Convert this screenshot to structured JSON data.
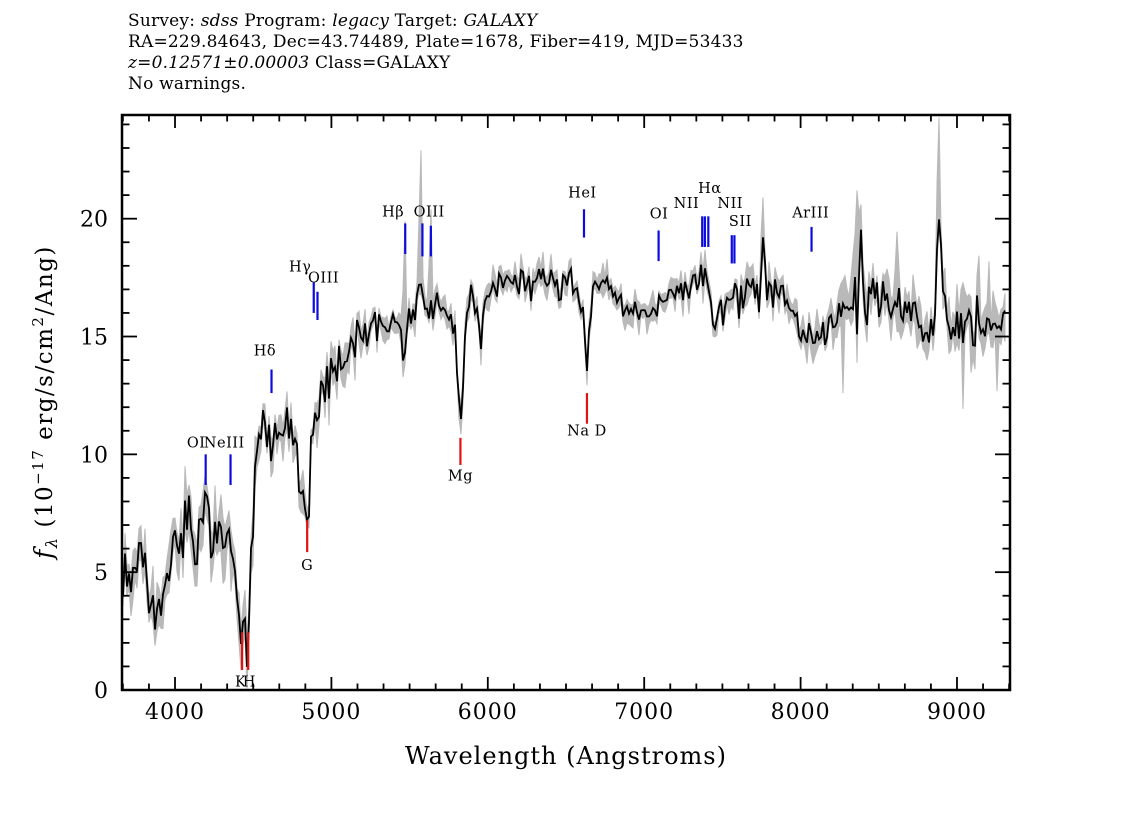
{
  "header": {
    "lines": [
      {
        "name": "survey-line",
        "segments": [
          {
            "text": "Survey: "
          },
          {
            "text": "sdss",
            "italic": true
          },
          {
            "text": " Program: "
          },
          {
            "text": "legacy",
            "italic": true
          },
          {
            "text": " Target: "
          },
          {
            "text": "GALAXY",
            "italic": true
          }
        ]
      },
      {
        "name": "coords-line",
        "segments": [
          {
            "text": "RA=229.84643, Dec=43.74489, Plate=1678, Fiber=419, MJD=53433"
          }
        ]
      },
      {
        "name": "redshift-line",
        "segments": [
          {
            "text": "z=0.12571±0.00003",
            "italic": true
          },
          {
            "text": " Class=GALAXY"
          }
        ]
      },
      {
        "name": "warnings-line",
        "segments": [
          {
            "text": "No warnings."
          }
        ]
      }
    ]
  },
  "chart_data": {
    "type": "line",
    "title": "SDSS galaxy spectrum, Plate=1678 Fiber=419 MJD=53433, z=0.12571",
    "xlabel": "Wavelength (Angstroms)",
    "ylabel_plain": "fλ (10⁻¹⁷ erg/s/cm²/Ang)",
    "ylabel_segments": [
      {
        "text": "f",
        "italic": true,
        "size": 25,
        "dy": 0
      },
      {
        "text": "λ",
        "italic": true,
        "size": 16,
        "dy": 5
      },
      {
        "text": " (10",
        "size": 23,
        "dy": -5
      },
      {
        "text": "−17",
        "size": 15,
        "dy": -9
      },
      {
        "text": " erg/s/cm",
        "size": 23,
        "dy": 9
      },
      {
        "text": "2",
        "size": 15,
        "dy": -9
      },
      {
        "text": "/Ang)",
        "size": 23,
        "dy": 9
      }
    ],
    "xlim": [
      3661,
      9339
    ],
    "ylim": [
      0,
      24.4
    ],
    "x_major_ticks": [
      4000,
      5000,
      6000,
      7000,
      8000,
      9000
    ],
    "x_minor_divisions": 6,
    "y_major_ticks": [
      0,
      5,
      10,
      15,
      20
    ],
    "y_minor_step": 1,
    "grid": false,
    "legend": "none",
    "colors": {
      "flux": "#000000",
      "error_envelope": "#b9b9b9",
      "emission": "#0b0bdf",
      "absorption": "#e31212",
      "frame": "#000000"
    },
    "series": [
      {
        "name": "flux",
        "role": "spectrum",
        "color": "#000000",
        "anchors": [
          [
            3661,
            4.8
          ],
          [
            3690,
            5.3
          ],
          [
            3715,
            4.3
          ],
          [
            3740,
            5.2
          ],
          [
            3762,
            4.4
          ],
          [
            3785,
            5.5
          ],
          [
            3810,
            4.9
          ],
          [
            3835,
            4.2
          ],
          [
            3858,
            3.4
          ],
          [
            3880,
            2.9
          ],
          [
            3900,
            4.6
          ],
          [
            3922,
            3.4
          ],
          [
            3945,
            4.0
          ],
          [
            3968,
            5.3
          ],
          [
            3990,
            5.7
          ],
          [
            4015,
            6.0
          ],
          [
            4040,
            6.8
          ],
          [
            4065,
            7.3
          ],
          [
            4090,
            7.2
          ],
          [
            4115,
            6.3
          ],
          [
            4140,
            5.9
          ],
          [
            4165,
            6.6
          ],
          [
            4190,
            7.1
          ],
          [
            4215,
            6.9
          ],
          [
            4240,
            6.0
          ],
          [
            4265,
            6.5
          ],
          [
            4290,
            6.9
          ],
          [
            4315,
            6.3
          ],
          [
            4340,
            6.5
          ],
          [
            4365,
            6.2
          ],
          [
            4395,
            4.8
          ],
          [
            4420,
            2.2
          ],
          [
            4438,
            3.0
          ],
          [
            4458,
            1.9
          ],
          [
            4478,
            3.2
          ],
          [
            4498,
            7.0
          ],
          [
            4515,
            9.4
          ],
          [
            4540,
            10.3
          ],
          [
            4565,
            10.9
          ],
          [
            4590,
            10.8
          ],
          [
            4615,
            10.2
          ],
          [
            4640,
            10.6
          ],
          [
            4665,
            11.0
          ],
          [
            4690,
            10.8
          ],
          [
            4715,
            11.2
          ],
          [
            4740,
            11.0
          ],
          [
            4765,
            10.4
          ],
          [
            4790,
            9.6
          ],
          [
            4815,
            8.6
          ],
          [
            4838,
            7.3
          ],
          [
            4852,
            7.6
          ],
          [
            4868,
            10.0
          ],
          [
            4885,
            11.7
          ],
          [
            4910,
            12.0
          ],
          [
            4935,
            12.4
          ],
          [
            4965,
            12.9
          ],
          [
            4995,
            13.4
          ],
          [
            5025,
            13.8
          ],
          [
            5055,
            14.1
          ],
          [
            5085,
            14.4
          ],
          [
            5115,
            14.7
          ],
          [
            5145,
            14.9
          ],
          [
            5175,
            15.1
          ],
          [
            5205,
            15.2
          ],
          [
            5235,
            15.3
          ],
          [
            5265,
            15.4
          ],
          [
            5295,
            15.5
          ],
          [
            5325,
            15.4
          ],
          [
            5355,
            15.3
          ],
          [
            5385,
            15.6
          ],
          [
            5415,
            15.7
          ],
          [
            5442,
            15.1
          ],
          [
            5465,
            13.9
          ],
          [
            5488,
            15.6
          ],
          [
            5512,
            16.0
          ],
          [
            5538,
            16.3
          ],
          [
            5565,
            17.8
          ],
          [
            5585,
            16.2
          ],
          [
            5610,
            16.1
          ],
          [
            5635,
            16.3
          ],
          [
            5662,
            16.6
          ],
          [
            5688,
            16.5
          ],
          [
            5715,
            16.4
          ],
          [
            5742,
            16.2
          ],
          [
            5768,
            15.8
          ],
          [
            5796,
            14.7
          ],
          [
            5825,
            11.3
          ],
          [
            5852,
            14.6
          ],
          [
            5878,
            16.5
          ],
          [
            5905,
            16.9
          ],
          [
            5932,
            15.9
          ],
          [
            5950,
            14.3
          ],
          [
            5972,
            16.2
          ],
          [
            6000,
            16.8
          ],
          [
            6035,
            17.0
          ],
          [
            6070,
            17.2
          ],
          [
            6105,
            17.5
          ],
          [
            6140,
            17.4
          ],
          [
            6175,
            17.2
          ],
          [
            6210,
            17.4
          ],
          [
            6245,
            17.5
          ],
          [
            6280,
            17.2
          ],
          [
            6315,
            17.3
          ],
          [
            6350,
            17.6
          ],
          [
            6385,
            17.5
          ],
          [
            6420,
            17.3
          ],
          [
            6455,
            17.2
          ],
          [
            6490,
            17.3
          ],
          [
            6525,
            17.4
          ],
          [
            6558,
            17.1
          ],
          [
            6590,
            16.8
          ],
          [
            6615,
            15.9
          ],
          [
            6632,
            12.9
          ],
          [
            6648,
            15.2
          ],
          [
            6672,
            17.0
          ],
          [
            6700,
            17.3
          ],
          [
            6730,
            17.4
          ],
          [
            6762,
            17.3
          ],
          [
            6795,
            17.1
          ],
          [
            6828,
            16.7
          ],
          [
            6860,
            16.3
          ],
          [
            6892,
            16.1
          ],
          [
            6925,
            16.0
          ],
          [
            6958,
            15.9
          ],
          [
            6990,
            16.0
          ],
          [
            7025,
            16.1
          ],
          [
            7060,
            16.2
          ],
          [
            7095,
            16.3
          ],
          [
            7130,
            16.5
          ],
          [
            7165,
            16.8
          ],
          [
            7200,
            16.9
          ],
          [
            7235,
            17.0
          ],
          [
            7270,
            17.1
          ],
          [
            7305,
            17.2
          ],
          [
            7340,
            17.3
          ],
          [
            7372,
            17.6
          ],
          [
            7392,
            17.9
          ],
          [
            7412,
            17.2
          ],
          [
            7435,
            15.2
          ],
          [
            7458,
            15.5
          ],
          [
            7482,
            16.0
          ],
          [
            7508,
            16.3
          ],
          [
            7535,
            16.5
          ],
          [
            7562,
            16.6
          ],
          [
            7590,
            16.5
          ],
          [
            7620,
            16.6
          ],
          [
            7650,
            16.7
          ],
          [
            7680,
            16.8
          ],
          [
            7712,
            16.9
          ],
          [
            7742,
            17.0
          ],
          [
            7762,
            19.2
          ],
          [
            7782,
            17.0
          ],
          [
            7812,
            16.9
          ],
          [
            7845,
            17.0
          ],
          [
            7878,
            16.8
          ],
          [
            7910,
            16.7
          ],
          [
            7942,
            16.3
          ],
          [
            7975,
            15.6
          ],
          [
            8008,
            15.1
          ],
          [
            8040,
            14.8
          ],
          [
            8072,
            14.7
          ],
          [
            8105,
            14.8
          ],
          [
            8138,
            15.1
          ],
          [
            8170,
            15.3
          ],
          [
            8202,
            15.5
          ],
          [
            8235,
            15.7
          ],
          [
            8268,
            15.9
          ],
          [
            8300,
            16.0
          ],
          [
            8332,
            16.2
          ],
          [
            8362,
            16.4
          ],
          [
            8385,
            19.4
          ],
          [
            8408,
            16.8
          ],
          [
            8440,
            17.0
          ],
          [
            8472,
            16.9
          ],
          [
            8505,
            16.8
          ],
          [
            8538,
            16.6
          ],
          [
            8570,
            16.5
          ],
          [
            8602,
            16.3
          ],
          [
            8635,
            16.2
          ],
          [
            8668,
            16.0
          ],
          [
            8700,
            15.9
          ],
          [
            8732,
            15.8
          ],
          [
            8765,
            15.8
          ],
          [
            8798,
            15.7
          ],
          [
            8830,
            15.6
          ],
          [
            8862,
            15.5
          ],
          [
            8888,
            20.8
          ],
          [
            8912,
            15.4
          ],
          [
            8945,
            15.5
          ],
          [
            8978,
            15.6
          ],
          [
            9010,
            15.6
          ],
          [
            9042,
            15.7
          ],
          [
            9075,
            15.6
          ],
          [
            9108,
            15.5
          ],
          [
            9140,
            15.4
          ],
          [
            9172,
            15.4
          ],
          [
            9205,
            15.5
          ],
          [
            9238,
            15.6
          ],
          [
            9270,
            15.7
          ],
          [
            9302,
            15.8
          ],
          [
            9330,
            15.9
          ]
        ]
      },
      {
        "name": "uncertainty",
        "role": "error-envelope",
        "color": "#b9b9b9",
        "sigma_regions": [
          [
            3661,
            4500,
            1.15
          ],
          [
            4500,
            5200,
            0.8
          ],
          [
            5200,
            7600,
            0.55
          ],
          [
            7600,
            8200,
            0.7
          ],
          [
            8200,
            9340,
            0.95
          ]
        ],
        "spikes_up": [
          [
            5472,
            19.9
          ],
          [
            5567,
            22.9
          ],
          [
            5636,
            20.4
          ],
          [
            7765,
            20.9
          ],
          [
            8360,
            21.2
          ],
          [
            8888,
            24.3
          ]
        ]
      }
    ],
    "emission_lines": [
      {
        "id": "oii3727",
        "label": "OI",
        "wave": 4196,
        "tick": [
          8.7,
          10.0
        ],
        "label_wave": 4135,
        "label_flux": 10.3
      },
      {
        "id": "neiii3869",
        "label": "NeIII",
        "wave": 4355,
        "tick": [
          8.7,
          10.0
        ],
        "label_wave": 4315,
        "label_flux": 10.3
      },
      {
        "id": "hdelta",
        "label": "Hδ",
        "wave": 4617,
        "tick": [
          12.6,
          13.6
        ],
        "label_wave": 4575,
        "label_flux": 14.2
      },
      {
        "id": "hgamma",
        "label": "Hγ",
        "wave": 4887,
        "tick": [
          16.0,
          17.3
        ],
        "label_wave": 4800,
        "label_flux": 17.75
      },
      {
        "id": "oiii4363",
        "label": "OIII",
        "wave": 4911,
        "tick": [
          15.7,
          16.9
        ],
        "label_wave": 4950,
        "label_flux": 17.3
      },
      {
        "id": "hbeta",
        "label": "Hβ",
        "wave": 5472,
        "tick": [
          18.5,
          19.8
        ],
        "label_wave": 5395,
        "label_flux": 20.1
      },
      {
        "id": "oiii4959",
        "label": "OIII",
        "wave": 5582,
        "tick": [
          18.4,
          19.8
        ],
        "label_wave": 5625,
        "label_flux": 20.1
      },
      {
        "id": "oiii5007",
        "label": "",
        "wave": 5636,
        "tick": [
          18.4,
          19.7
        ]
      },
      {
        "id": "hei5876",
        "label": "HeI",
        "wave": 6615,
        "tick": [
          19.2,
          20.4
        ],
        "label_wave": 6605,
        "label_flux": 20.9
      },
      {
        "id": "oi6300",
        "label": "OI",
        "wave": 7092,
        "tick": [
          18.2,
          19.5
        ],
        "label_wave": 7095,
        "label_flux": 20.0
      },
      {
        "id": "nii6548",
        "label": "NII",
        "wave": 7371,
        "tick": [
          18.8,
          20.1
        ],
        "label_wave": 7270,
        "label_flux": 20.45
      },
      {
        "id": "halpha",
        "label": "Hα",
        "wave": 7388,
        "tick": [
          18.8,
          20.1
        ],
        "label_wave": 7420,
        "label_flux": 21.1
      },
      {
        "id": "nii6583",
        "label": "NII",
        "wave": 7410,
        "tick": [
          18.8,
          20.1
        ],
        "label_wave": 7550,
        "label_flux": 20.45
      },
      {
        "id": "sii6716",
        "label": "SII",
        "wave": 7560,
        "tick": [
          18.1,
          19.3
        ],
        "label_wave": 7615,
        "label_flux": 19.7
      },
      {
        "id": "sii6731",
        "label": "",
        "wave": 7577,
        "tick": [
          18.1,
          19.3
        ]
      },
      {
        "id": "ariii7136",
        "label": "ArIII",
        "wave": 8070,
        "tick": [
          18.6,
          19.65
        ],
        "label_wave": 8065,
        "label_flux": 20.05
      }
    ],
    "absorption_lines": [
      {
        "id": "ca_k",
        "label": "K",
        "wave": 4429,
        "tick": [
          0.85,
          2.45
        ],
        "label_wave": 4420,
        "label_flux": 0.15
      },
      {
        "id": "ca_h",
        "label": "H",
        "wave": 4468,
        "tick": [
          0.85,
          2.45
        ],
        "label_wave": 4475,
        "label_flux": 0.15
      },
      {
        "id": "gband",
        "label": "G",
        "wave": 4845,
        "tick": [
          5.85,
          7.2
        ],
        "label_wave": 4845,
        "label_flux": 5.1
      },
      {
        "id": "mg",
        "label": "Mg",
        "wave": 5825,
        "tick": [
          9.55,
          10.7
        ],
        "label_wave": 5825,
        "label_flux": 8.9
      },
      {
        "id": "nad",
        "label": "Na D",
        "wave": 6634,
        "tick": [
          11.3,
          12.6
        ],
        "label_wave": 6634,
        "label_flux": 10.8
      }
    ]
  }
}
